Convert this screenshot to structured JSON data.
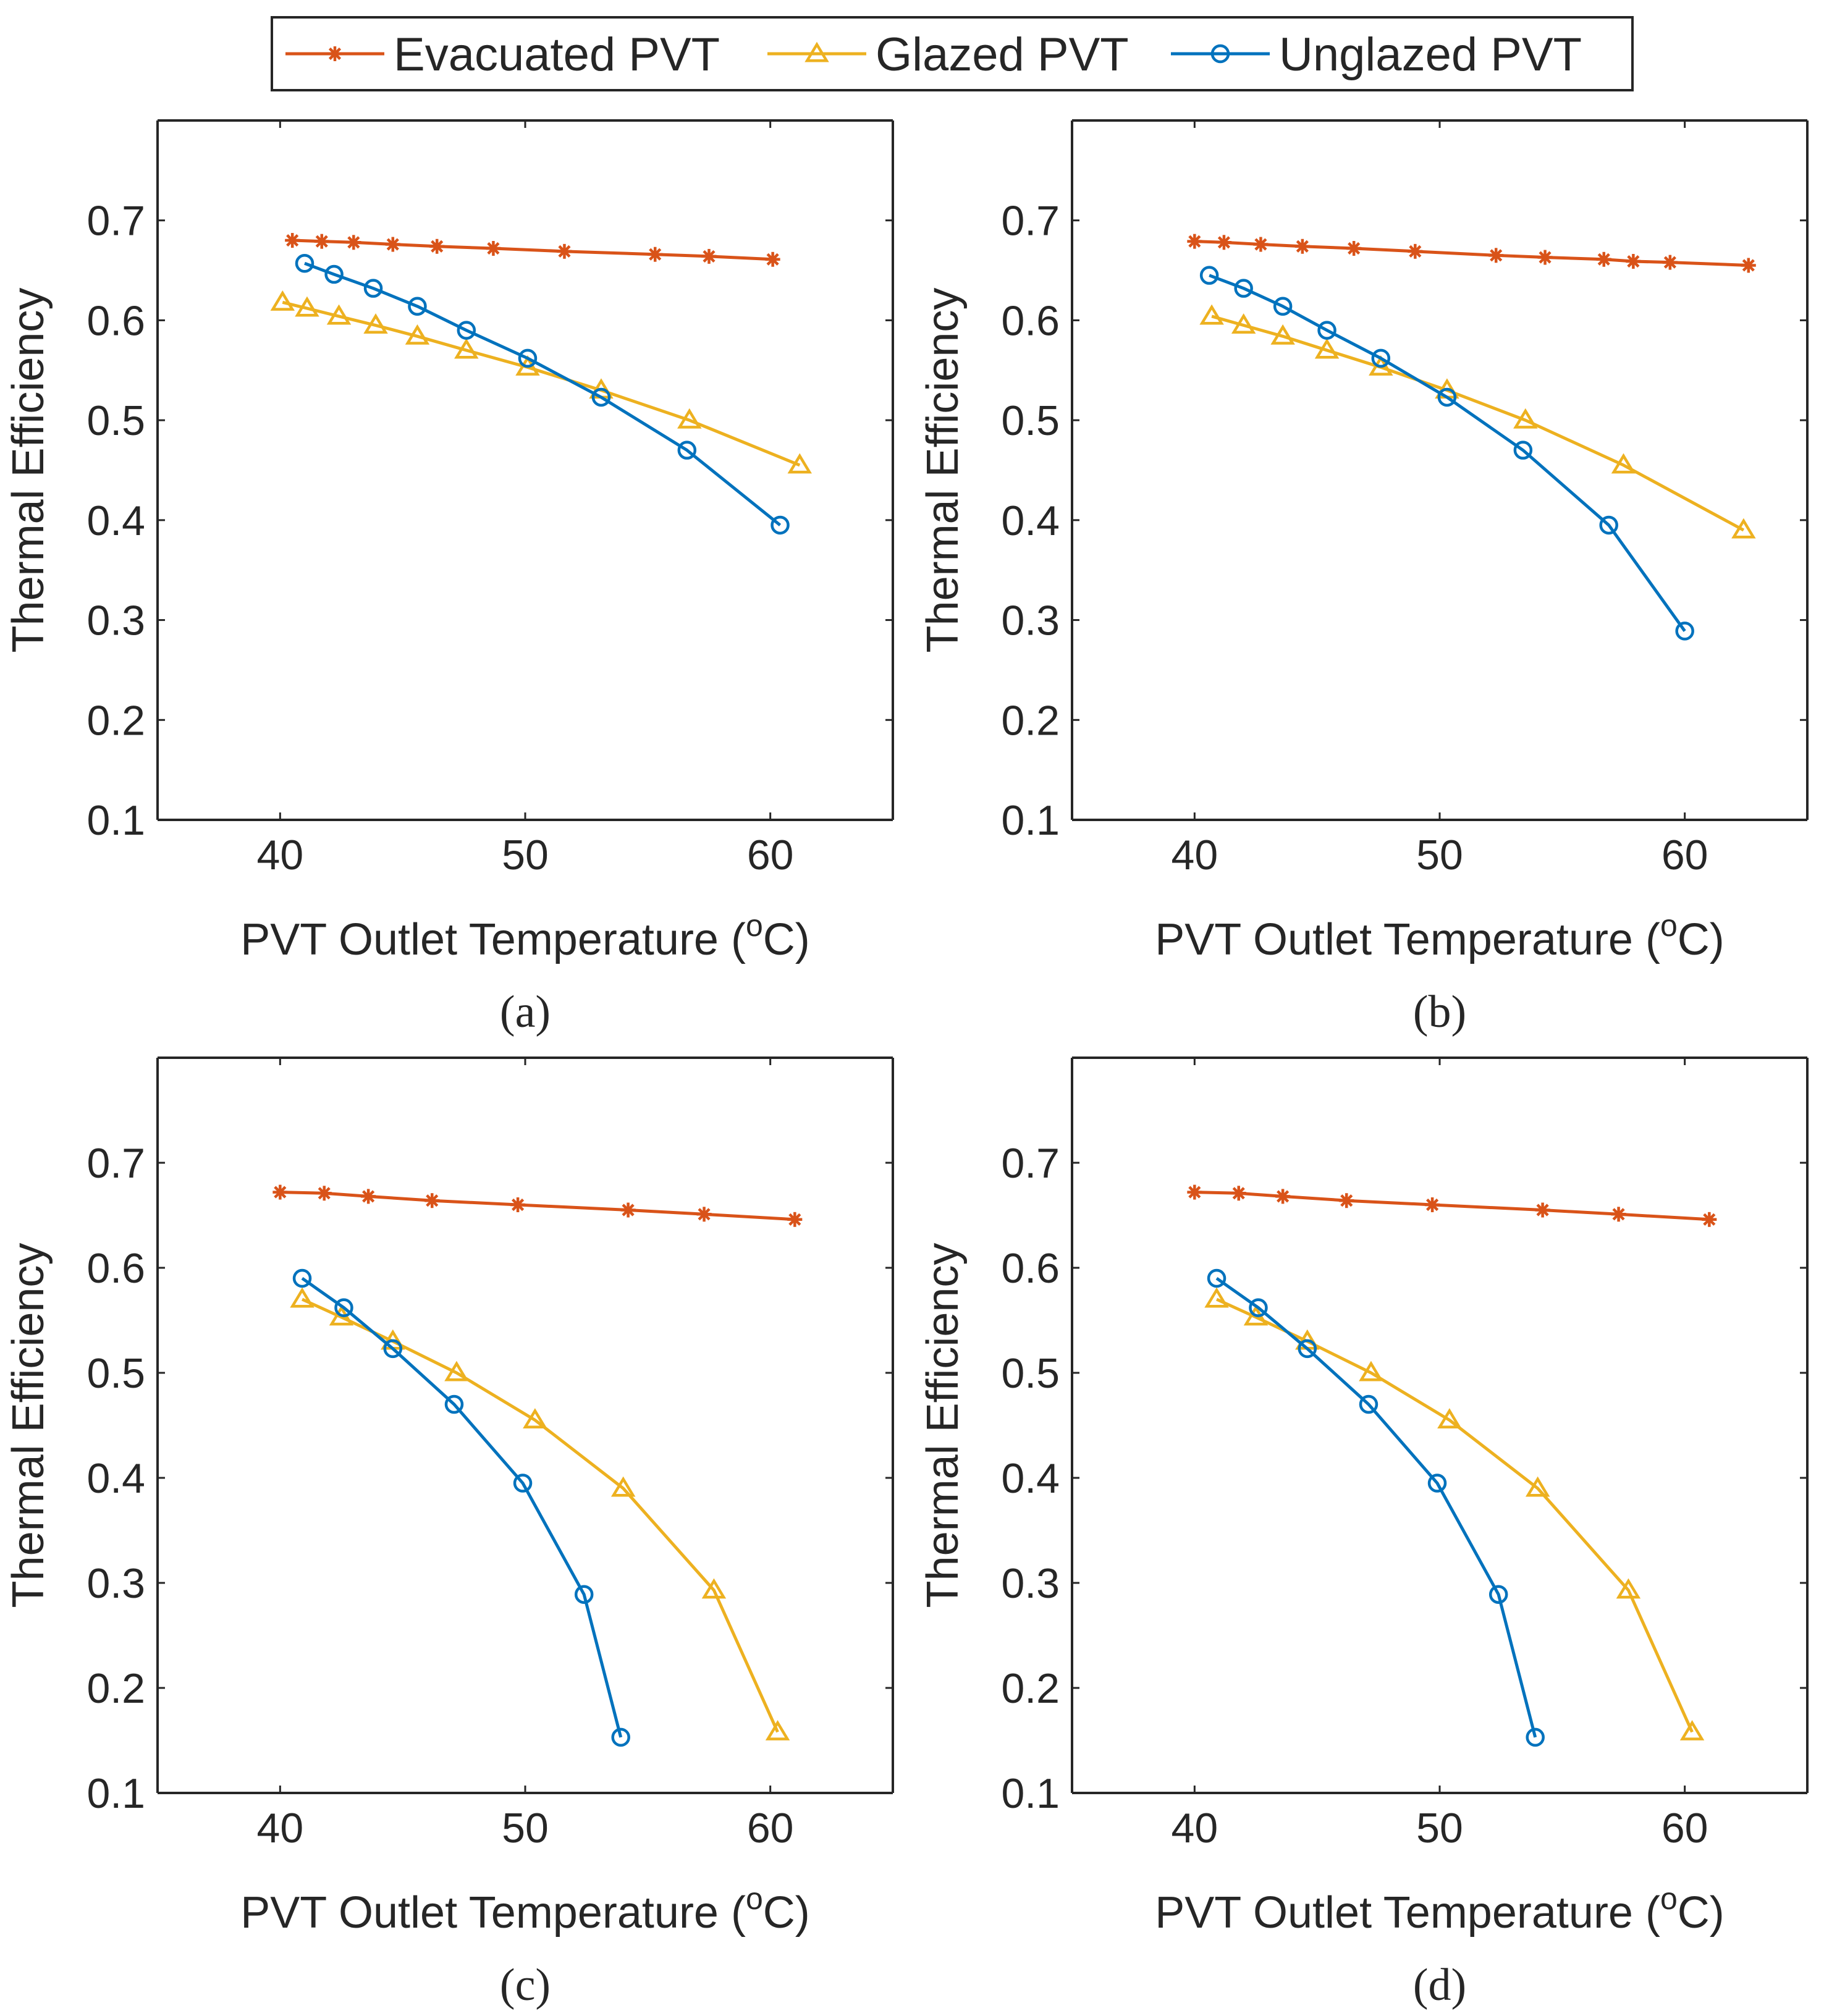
{
  "legend": {
    "entries": [
      {
        "label": "Evacuated PVT",
        "color": "#D95319",
        "marker": "asterisk-icon"
      },
      {
        "label": "Glazed PVT",
        "color": "#EDB120",
        "marker": "triangle-icon"
      },
      {
        "label": "Unglazed PVT",
        "color": "#0072BD",
        "marker": "circle-icon"
      }
    ]
  },
  "chart_data": [
    {
      "type": "line",
      "panel": "a",
      "caption": "(a)",
      "xlabel": "PVT Outlet Temperature (",
      "xlabel_sup": "o",
      "xlabel_unit": "C)",
      "ylabel": "Thermal Efficiency",
      "xlim": [
        35,
        65
      ],
      "ylim": [
        0.1,
        0.8
      ],
      "xticks": [
        "40",
        "50",
        "60"
      ],
      "yticks": [
        "0.1",
        "0.2",
        "0.3",
        "0.4",
        "0.5",
        "0.6",
        "0.7"
      ],
      "series": [
        {
          "name": "Evacuated PVT",
          "x": [
            40.5,
            41.7,
            43.0,
            44.6,
            46.4,
            48.7,
            51.6,
            55.3,
            57.5,
            60.1
          ],
          "y": [
            0.68,
            0.679,
            0.678,
            0.676,
            0.674,
            0.672,
            0.669,
            0.666,
            0.664,
            0.661
          ]
        },
        {
          "name": "Glazed PVT",
          "x": [
            40.1,
            41.1,
            42.4,
            43.9,
            45.6,
            47.6,
            50.1,
            53.1,
            56.7,
            61.2
          ],
          "y": [
            0.618,
            0.612,
            0.604,
            0.595,
            0.584,
            0.57,
            0.553,
            0.53,
            0.5,
            0.455
          ]
        },
        {
          "name": "Unglazed PVT",
          "x": [
            41.0,
            42.2,
            43.8,
            45.6,
            47.6,
            50.1,
            53.1,
            56.6,
            60.4
          ],
          "y": [
            0.657,
            0.646,
            0.632,
            0.614,
            0.59,
            0.562,
            0.523,
            0.47,
            0.395
          ]
        }
      ]
    },
    {
      "type": "line",
      "panel": "b",
      "caption": "(b)",
      "xlabel": "PVT Outlet Temperature (",
      "xlabel_sup": "o",
      "xlabel_unit": "C)",
      "ylabel": "Thermal Efficiency",
      "xlim": [
        35,
        65
      ],
      "ylim": [
        0.1,
        0.8
      ],
      "xticks": [
        "40",
        "50",
        "60"
      ],
      "yticks": [
        "0.1",
        "0.2",
        "0.3",
        "0.4",
        "0.5",
        "0.6",
        "0.7"
      ],
      "series": [
        {
          "name": "Evacuated PVT",
          "x": [
            40.0,
            41.2,
            42.7,
            44.4,
            46.5,
            49.0,
            52.3,
            54.3,
            56.7,
            57.9,
            59.4,
            62.6
          ],
          "y": [
            0.679,
            0.678,
            0.676,
            0.674,
            0.672,
            0.669,
            0.665,
            0.663,
            0.661,
            0.659,
            0.658,
            0.655
          ]
        },
        {
          "name": "Glazed PVT",
          "x": [
            40.7,
            42.0,
            43.6,
            45.4,
            47.6,
            50.3,
            53.5,
            57.5,
            62.4
          ],
          "y": [
            0.604,
            0.595,
            0.584,
            0.57,
            0.553,
            0.53,
            0.5,
            0.455,
            0.39
          ]
        },
        {
          "name": "Unglazed PVT",
          "x": [
            40.6,
            42.0,
            43.6,
            45.4,
            47.6,
            50.3,
            53.4,
            56.9,
            60.0
          ],
          "y": [
            0.645,
            0.632,
            0.614,
            0.59,
            0.562,
            0.523,
            0.47,
            0.395,
            0.289
          ]
        }
      ]
    },
    {
      "type": "line",
      "panel": "c",
      "caption": "(c)",
      "xlabel": "PVT Outlet Temperature (",
      "xlabel_sup": "o",
      "xlabel_unit": "C)",
      "ylabel": "Thermal Efficiency",
      "xlim": [
        35,
        65
      ],
      "ylim": [
        0.1,
        0.8
      ],
      "xticks": [
        "40",
        "50",
        "60"
      ],
      "yticks": [
        "0.1",
        "0.2",
        "0.3",
        "0.4",
        "0.5",
        "0.6",
        "0.7"
      ],
      "series": [
        {
          "name": "Evacuated PVT",
          "x": [
            40.0,
            41.8,
            43.6,
            46.2,
            49.7,
            54.2,
            57.3,
            61.0
          ],
          "y": [
            0.672,
            0.671,
            0.668,
            0.664,
            0.66,
            0.655,
            0.651,
            0.646
          ]
        },
        {
          "name": "Glazed PVT",
          "x": [
            40.9,
            42.5,
            44.6,
            47.2,
            50.4,
            54.0,
            57.7,
            60.3
          ],
          "y": [
            0.57,
            0.553,
            0.53,
            0.5,
            0.455,
            0.39,
            0.293,
            0.158
          ]
        },
        {
          "name": "Unglazed PVT",
          "x": [
            40.9,
            42.6,
            44.6,
            47.1,
            49.9,
            52.4,
            53.9
          ],
          "y": [
            0.59,
            0.562,
            0.523,
            0.47,
            0.395,
            0.289,
            0.153
          ]
        }
      ]
    },
    {
      "type": "line",
      "panel": "d",
      "caption": "(d)",
      "xlabel": "PVT Outlet Temperature (",
      "xlabel_sup": "o",
      "xlabel_unit": "C)",
      "ylabel": "Thermal Efficiency",
      "xlim": [
        35,
        65
      ],
      "ylim": [
        0.1,
        0.8
      ],
      "xticks": [
        "40",
        "50",
        "60"
      ],
      "yticks": [
        "0.1",
        "0.2",
        "0.3",
        "0.4",
        "0.5",
        "0.6",
        "0.7"
      ],
      "series": [
        {
          "name": "Evacuated PVT",
          "x": [
            40.0,
            41.8,
            43.6,
            46.2,
            49.7,
            54.2,
            57.3,
            61.0
          ],
          "y": [
            0.672,
            0.671,
            0.668,
            0.664,
            0.66,
            0.655,
            0.651,
            0.646
          ]
        },
        {
          "name": "Glazed PVT",
          "x": [
            40.9,
            42.5,
            44.6,
            47.2,
            50.4,
            54.0,
            57.7,
            60.3
          ],
          "y": [
            0.57,
            0.553,
            0.53,
            0.5,
            0.455,
            0.39,
            0.293,
            0.158
          ]
        },
        {
          "name": "Unglazed PVT",
          "x": [
            40.9,
            42.6,
            44.6,
            47.1,
            49.9,
            52.4,
            53.9
          ],
          "y": [
            0.59,
            0.562,
            0.523,
            0.47,
            0.395,
            0.289,
            0.153
          ]
        }
      ]
    }
  ]
}
